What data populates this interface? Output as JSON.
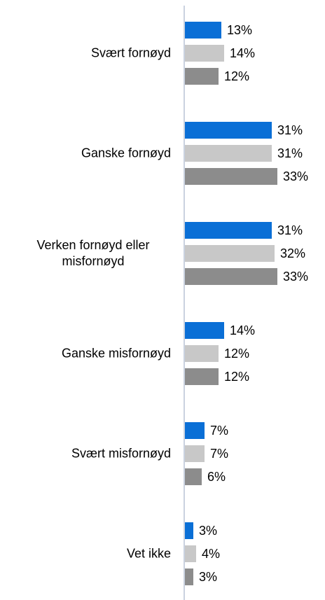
{
  "chart_data": {
    "type": "bar",
    "orientation": "horizontal",
    "categories": [
      "Svært fornøyd",
      "Ganske fornøyd",
      "Verken fornøyd eller misfornøyd",
      "Ganske misfornøyd",
      "Svært misfornøyd",
      "Vet ikke"
    ],
    "series": [
      {
        "color": "#0a6fd6",
        "values": [
          13,
          31,
          31,
          14,
          7,
          3
        ],
        "value_labels": [
          "13%",
          "31%",
          "31%",
          "14%",
          "7%",
          "3%"
        ]
      },
      {
        "color": "#c8c8c8",
        "values": [
          14,
          31,
          32,
          12,
          7,
          4
        ],
        "value_labels": [
          "14%",
          "31%",
          "32%",
          "12%",
          "7%",
          "4%"
        ]
      },
      {
        "color": "#8c8c8c",
        "values": [
          12,
          33,
          33,
          12,
          6,
          3
        ],
        "value_labels": [
          "12%",
          "33%",
          "33%",
          "12%",
          "6%",
          "3%"
        ]
      }
    ]
  }
}
